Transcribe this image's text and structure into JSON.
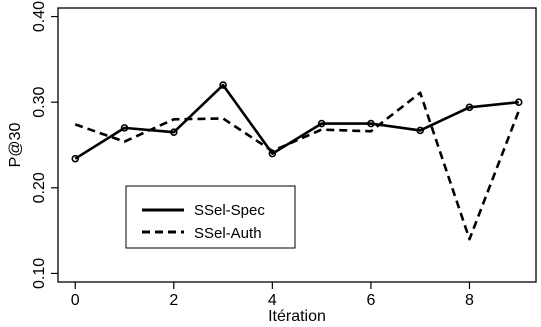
{
  "chart_data": {
    "type": "line",
    "xlabel": "Itération",
    "ylabel": "P@30",
    "xlim": [
      -0.35,
      9.35
    ],
    "ylim": [
      0.09,
      0.41
    ],
    "x_ticks": [
      0,
      2,
      4,
      6,
      8
    ],
    "x_tick_labels": [
      "0",
      "2",
      "4",
      "6",
      "8"
    ],
    "y_ticks": [
      0.1,
      0.2,
      0.3,
      0.4
    ],
    "y_tick_labels": [
      "0.10",
      "0.20",
      "0.30",
      "0.40"
    ],
    "grid": false,
    "legend_position": "bottom-left",
    "x": [
      0,
      1,
      2,
      3,
      4,
      5,
      6,
      7,
      8,
      9
    ],
    "series": [
      {
        "name": "SSel-Spec",
        "style": "solid",
        "markers": true,
        "color": "#000000",
        "values": [
          0.234,
          0.27,
          0.265,
          0.32,
          0.24,
          0.275,
          0.275,
          0.267,
          0.294,
          0.3
        ]
      },
      {
        "name": "SSel-Auth",
        "style": "dashed",
        "markers": false,
        "color": "#000000",
        "values": [
          0.274,
          0.254,
          0.28,
          0.281,
          0.243,
          0.268,
          0.266,
          0.311,
          0.14,
          0.29
        ]
      }
    ]
  }
}
